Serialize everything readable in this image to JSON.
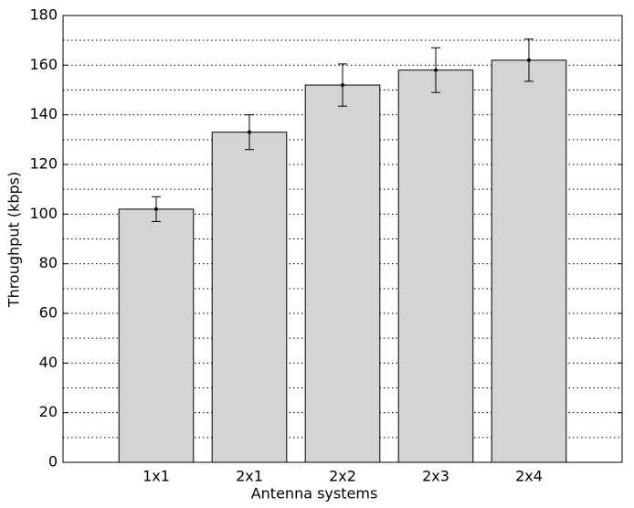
{
  "chart_data": {
    "type": "bar",
    "x_label": "Antenna systems",
    "y_label": "Throughput (kbps)",
    "categories": [
      "1x1",
      "2x1",
      "2x2",
      "2x3",
      "2x4"
    ],
    "values": [
      102,
      133,
      152,
      158,
      162
    ],
    "errors": [
      5,
      7,
      8.5,
      9,
      8.5
    ],
    "color": "#d4d4d4",
    "ylim": [
      0,
      180
    ],
    "yticks": [
      0,
      20,
      40,
      60,
      80,
      100,
      120,
      140,
      160,
      180
    ],
    "minor_yticks": [
      10,
      30,
      50,
      70,
      90,
      110,
      130,
      150,
      170
    ],
    "grid": true
  }
}
